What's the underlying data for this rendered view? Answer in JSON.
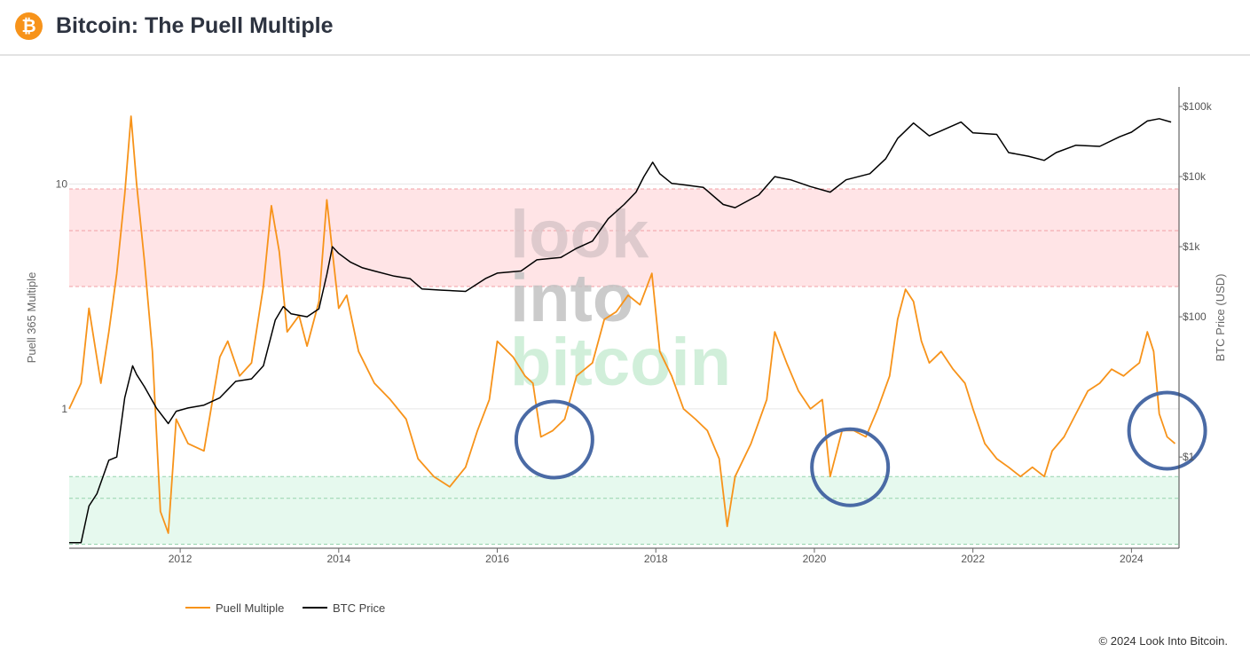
{
  "header": {
    "logo_glyph": "₿",
    "title": "Bitcoin: The Puell Multiple"
  },
  "chart_data": {
    "type": "line",
    "title": "Bitcoin: The Puell Multiple",
    "x_ticks": [
      "2012",
      "2014",
      "2016",
      "2018",
      "2020",
      "2022",
      "2024"
    ],
    "x_range": [
      2010.6,
      2024.6
    ],
    "y_left": {
      "label": "Puell 365 Multiple",
      "scale": "log",
      "ticks": [
        {
          "value": 10,
          "label": "10"
        },
        {
          "value": 1,
          "label": "1"
        }
      ],
      "range": [
        0.24,
        27
      ]
    },
    "y_right": {
      "label": "BTC Price (USD)",
      "scale": "log",
      "ticks": [
        {
          "value": 100000,
          "label": "$100k"
        },
        {
          "value": 10000,
          "label": "$10k"
        },
        {
          "value": 1000,
          "label": "$1k"
        },
        {
          "value": 100,
          "label": "$100"
        },
        {
          "value": 1,
          "label": "$1"
        }
      ],
      "range": [
        0.05,
        190000
      ]
    },
    "zones": [
      {
        "name": "sell-zone",
        "from": 3.5,
        "to": 9.5,
        "color": "#ffe4e6",
        "line_color": "#f2a0a6"
      },
      {
        "name": "buy-zone",
        "from": 0.25,
        "to": 0.5,
        "color": "#e6f9ee",
        "line_color": "#96d3ad"
      }
    ],
    "zone_guides": [
      6.2,
      0.4
    ],
    "series": [
      {
        "name": "Puell Multiple",
        "color": "#f7931a",
        "axis": "left",
        "x": [
          2010.6,
          2010.75,
          2010.85,
          2011.0,
          2011.1,
          2011.2,
          2011.3,
          2011.38,
          2011.45,
          2011.55,
          2011.65,
          2011.75,
          2011.85,
          2011.95,
          2012.1,
          2012.3,
          2012.5,
          2012.6,
          2012.75,
          2012.9,
          2013.05,
          2013.15,
          2013.25,
          2013.35,
          2013.5,
          2013.6,
          2013.75,
          2013.85,
          2013.92,
          2014.0,
          2014.1,
          2014.25,
          2014.45,
          2014.65,
          2014.85,
          2015.0,
          2015.2,
          2015.4,
          2015.6,
          2015.75,
          2015.9,
          2016.0,
          2016.2,
          2016.35,
          2016.45,
          2016.55,
          2016.7,
          2016.85,
          2017.0,
          2017.2,
          2017.35,
          2017.5,
          2017.65,
          2017.8,
          2017.95,
          2018.05,
          2018.2,
          2018.35,
          2018.5,
          2018.65,
          2018.8,
          2018.9,
          2019.0,
          2019.2,
          2019.4,
          2019.5,
          2019.65,
          2019.8,
          2019.95,
          2020.1,
          2020.2,
          2020.35,
          2020.5,
          2020.65,
          2020.8,
          2020.95,
          2021.05,
          2021.15,
          2021.25,
          2021.35,
          2021.45,
          2021.6,
          2021.75,
          2021.9,
          2022.0,
          2022.15,
          2022.3,
          2022.45,
          2022.6,
          2022.75,
          2022.9,
          2023.0,
          2023.15,
          2023.3,
          2023.45,
          2023.6,
          2023.75,
          2023.9,
          2024.0,
          2024.1,
          2024.2,
          2024.28,
          2024.35,
          2024.45,
          2024.55
        ],
        "values": [
          1.0,
          1.3,
          2.8,
          1.3,
          2.2,
          4.0,
          9.0,
          20.0,
          10.0,
          4.5,
          1.8,
          0.35,
          0.28,
          0.9,
          0.7,
          0.65,
          1.7,
          2.0,
          1.4,
          1.6,
          3.5,
          8.0,
          5.0,
          2.2,
          2.6,
          1.9,
          3.0,
          8.5,
          5.0,
          2.8,
          3.2,
          1.8,
          1.3,
          1.1,
          0.9,
          0.6,
          0.5,
          0.45,
          0.55,
          0.8,
          1.1,
          2.0,
          1.7,
          1.4,
          1.3,
          0.75,
          0.8,
          0.9,
          1.4,
          1.6,
          2.5,
          2.7,
          3.2,
          2.9,
          4.0,
          1.8,
          1.4,
          1.0,
          0.9,
          0.8,
          0.6,
          0.3,
          0.5,
          0.7,
          1.1,
          2.2,
          1.6,
          1.2,
          1.0,
          1.1,
          0.5,
          0.8,
          0.8,
          0.75,
          1.0,
          1.4,
          2.5,
          3.4,
          3.0,
          2.0,
          1.6,
          1.8,
          1.5,
          1.3,
          1.0,
          0.7,
          0.6,
          0.55,
          0.5,
          0.55,
          0.5,
          0.65,
          0.75,
          0.95,
          1.2,
          1.3,
          1.5,
          1.4,
          1.5,
          1.6,
          2.2,
          1.8,
          0.95,
          0.75,
          0.7
        ]
      },
      {
        "name": "BTC Price",
        "color": "#000000",
        "axis": "right",
        "x": [
          2010.6,
          2010.75,
          2010.85,
          2010.95,
          2011.1,
          2011.2,
          2011.3,
          2011.4,
          2011.45,
          2011.55,
          2011.7,
          2011.85,
          2011.95,
          2012.1,
          2012.3,
          2012.5,
          2012.7,
          2012.9,
          2013.05,
          2013.2,
          2013.3,
          2013.4,
          2013.6,
          2013.75,
          2013.85,
          2013.92,
          2014.0,
          2014.15,
          2014.3,
          2014.45,
          2014.7,
          2014.9,
          2015.05,
          2015.3,
          2015.6,
          2015.85,
          2016.0,
          2016.3,
          2016.5,
          2016.8,
          2017.0,
          2017.2,
          2017.4,
          2017.6,
          2017.75,
          2017.85,
          2017.96,
          2018.05,
          2018.2,
          2018.4,
          2018.6,
          2018.85,
          2019.0,
          2019.3,
          2019.5,
          2019.7,
          2019.95,
          2020.2,
          2020.4,
          2020.7,
          2020.9,
          2021.05,
          2021.25,
          2021.45,
          2021.6,
          2021.85,
          2022.0,
          2022.3,
          2022.45,
          2022.7,
          2022.9,
          2023.05,
          2023.3,
          2023.6,
          2023.85,
          2024.0,
          2024.2,
          2024.35,
          2024.5
        ],
        "values": [
          0.06,
          0.06,
          0.2,
          0.3,
          0.9,
          1.0,
          7.0,
          20.0,
          15.0,
          10.0,
          5.0,
          3.0,
          4.5,
          5.0,
          5.5,
          7.0,
          12.0,
          13.0,
          20.0,
          90.0,
          140.0,
          110.0,
          100.0,
          130.0,
          400.0,
          1000.0,
          800.0,
          600.0,
          500.0,
          450.0,
          380.0,
          350.0,
          250.0,
          240.0,
          230.0,
          350.0,
          420.0,
          450.0,
          650.0,
          700.0,
          950.0,
          1200.0,
          2500.0,
          4000.0,
          6000.0,
          10000.0,
          16000.0,
          11000.0,
          8000.0,
          7500.0,
          7000.0,
          4000.0,
          3600.0,
          5500.0,
          10000.0,
          9000.0,
          7200.0,
          6000.0,
          9000.0,
          11000.0,
          18000.0,
          35000.0,
          58000.0,
          38000.0,
          45000.0,
          60000.0,
          42000.0,
          40000.0,
          22000.0,
          19500.0,
          17000.0,
          22000.0,
          28000.0,
          27000.0,
          37000.0,
          43000.0,
          62000.0,
          67000.0,
          60000.0
        ]
      }
    ],
    "annotations": [
      {
        "type": "circle",
        "x": 2016.72,
        "y": 0.73,
        "color": "#4a6aa5"
      },
      {
        "type": "circle",
        "x": 2020.45,
        "y": 0.55,
        "color": "#4a6aa5"
      },
      {
        "type": "circle",
        "x": 2024.45,
        "y": 0.8,
        "color": "#4a6aa5"
      }
    ],
    "watermark": [
      "look",
      "into",
      "bitcoin"
    ],
    "legend": {
      "position": "bottom-left",
      "items": [
        "Puell Multiple",
        "BTC Price"
      ]
    }
  },
  "footer": {
    "copyright": "© 2024 Look Into Bitcoin."
  }
}
